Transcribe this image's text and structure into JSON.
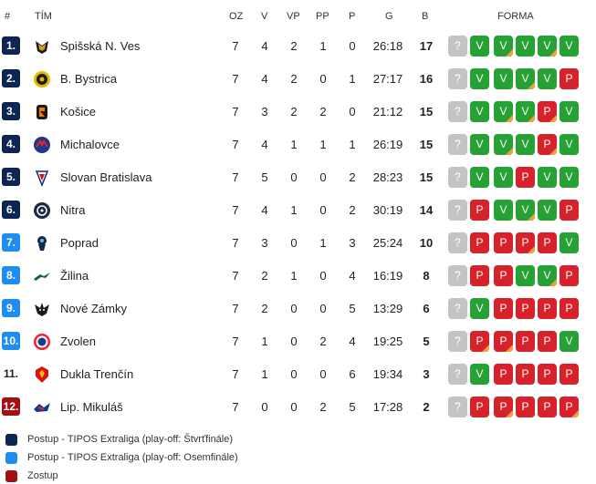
{
  "header": {
    "rank": "#",
    "team": "TÍM",
    "oz": "OZ",
    "v": "V",
    "vp": "VP",
    "pp": "PP",
    "p": "P",
    "g": "G",
    "b": "B",
    "forma": "FORMA"
  },
  "colors": {
    "qf": "#0c2553",
    "r16": "#1d8ef0",
    "rel": "#a30f12",
    "win": "#25a233",
    "loss": "#d7222b",
    "unknown": "#c4c4c4",
    "ot": "#f0a23a"
  },
  "rows": [
    {
      "rank": "1.",
      "zone": "qf",
      "team": "Spišská N. Ves",
      "logo": "spisska-logo-icon",
      "oz": "7",
      "v": "4",
      "vp": "2",
      "pp": "1",
      "p": "0",
      "g": "26:18",
      "b": "17",
      "form": [
        {
          "r": "?",
          "ot": false
        },
        {
          "r": "V",
          "ot": false
        },
        {
          "r": "V",
          "ot": true
        },
        {
          "r": "V",
          "ot": false
        },
        {
          "r": "V",
          "ot": true
        },
        {
          "r": "V",
          "ot": false
        }
      ]
    },
    {
      "rank": "2.",
      "zone": "qf",
      "team": "B. Bystrica",
      "logo": "bystrica-logo-icon",
      "oz": "7",
      "v": "4",
      "vp": "2",
      "pp": "0",
      "p": "1",
      "g": "27:17",
      "b": "16",
      "form": [
        {
          "r": "?",
          "ot": false
        },
        {
          "r": "V",
          "ot": false
        },
        {
          "r": "V",
          "ot": false
        },
        {
          "r": "V",
          "ot": true
        },
        {
          "r": "V",
          "ot": false
        },
        {
          "r": "P",
          "ot": false
        }
      ]
    },
    {
      "rank": "3.",
      "zone": "qf",
      "team": "Košice",
      "logo": "kosice-logo-icon",
      "oz": "7",
      "v": "3",
      "vp": "2",
      "pp": "2",
      "p": "0",
      "g": "21:12",
      "b": "15",
      "form": [
        {
          "r": "?",
          "ot": false
        },
        {
          "r": "V",
          "ot": false
        },
        {
          "r": "V",
          "ot": true
        },
        {
          "r": "V",
          "ot": true
        },
        {
          "r": "P",
          "ot": true
        },
        {
          "r": "V",
          "ot": false
        }
      ]
    },
    {
      "rank": "4.",
      "zone": "qf",
      "team": "Michalovce",
      "logo": "michalovce-logo-icon",
      "oz": "7",
      "v": "4",
      "vp": "1",
      "pp": "1",
      "p": "1",
      "g": "26:19",
      "b": "15",
      "form": [
        {
          "r": "?",
          "ot": false
        },
        {
          "r": "V",
          "ot": false
        },
        {
          "r": "V",
          "ot": true
        },
        {
          "r": "V",
          "ot": false
        },
        {
          "r": "P",
          "ot": true
        },
        {
          "r": "V",
          "ot": false
        }
      ]
    },
    {
      "rank": "5.",
      "zone": "qf",
      "team": "Slovan Bratislava",
      "logo": "slovan-logo-icon",
      "oz": "7",
      "v": "5",
      "vp": "0",
      "pp": "0",
      "p": "2",
      "g": "28:23",
      "b": "15",
      "form": [
        {
          "r": "?",
          "ot": false
        },
        {
          "r": "V",
          "ot": false
        },
        {
          "r": "V",
          "ot": false
        },
        {
          "r": "P",
          "ot": false
        },
        {
          "r": "V",
          "ot": false
        },
        {
          "r": "V",
          "ot": false
        }
      ]
    },
    {
      "rank": "6.",
      "zone": "qf",
      "team": "Nitra",
      "logo": "nitra-logo-icon",
      "oz": "7",
      "v": "4",
      "vp": "1",
      "pp": "0",
      "p": "2",
      "g": "30:19",
      "b": "14",
      "form": [
        {
          "r": "?",
          "ot": false
        },
        {
          "r": "P",
          "ot": false
        },
        {
          "r": "V",
          "ot": false
        },
        {
          "r": "V",
          "ot": true
        },
        {
          "r": "V",
          "ot": false
        },
        {
          "r": "P",
          "ot": false
        }
      ]
    },
    {
      "rank": "7.",
      "zone": "r16",
      "team": "Poprad",
      "logo": "poprad-logo-icon",
      "oz": "7",
      "v": "3",
      "vp": "0",
      "pp": "1",
      "p": "3",
      "g": "25:24",
      "b": "10",
      "form": [
        {
          "r": "?",
          "ot": false
        },
        {
          "r": "P",
          "ot": false
        },
        {
          "r": "P",
          "ot": false
        },
        {
          "r": "P",
          "ot": true
        },
        {
          "r": "P",
          "ot": false
        },
        {
          "r": "V",
          "ot": false
        }
      ]
    },
    {
      "rank": "8.",
      "zone": "r16",
      "team": "Žilina",
      "logo": "zilina-logo-icon",
      "oz": "7",
      "v": "2",
      "vp": "1",
      "pp": "0",
      "p": "4",
      "g": "16:19",
      "b": "8",
      "form": [
        {
          "r": "?",
          "ot": false
        },
        {
          "r": "P",
          "ot": false
        },
        {
          "r": "P",
          "ot": false
        },
        {
          "r": "V",
          "ot": false
        },
        {
          "r": "V",
          "ot": true
        },
        {
          "r": "P",
          "ot": false
        }
      ]
    },
    {
      "rank": "9.",
      "zone": "r16",
      "team": "Nové Zámky",
      "logo": "zamky-logo-icon",
      "oz": "7",
      "v": "2",
      "vp": "0",
      "pp": "0",
      "p": "5",
      "g": "13:29",
      "b": "6",
      "form": [
        {
          "r": "?",
          "ot": false
        },
        {
          "r": "V",
          "ot": false
        },
        {
          "r": "P",
          "ot": false
        },
        {
          "r": "P",
          "ot": false
        },
        {
          "r": "P",
          "ot": false
        },
        {
          "r": "P",
          "ot": false
        }
      ]
    },
    {
      "rank": "10.",
      "zone": "r16",
      "team": "Zvolen",
      "logo": "zvolen-logo-icon",
      "oz": "7",
      "v": "1",
      "vp": "0",
      "pp": "2",
      "p": "4",
      "g": "19:25",
      "b": "5",
      "form": [
        {
          "r": "?",
          "ot": false
        },
        {
          "r": "P",
          "ot": true
        },
        {
          "r": "P",
          "ot": true
        },
        {
          "r": "P",
          "ot": false
        },
        {
          "r": "P",
          "ot": false
        },
        {
          "r": "V",
          "ot": false
        }
      ]
    },
    {
      "rank": "11.",
      "zone": "none",
      "team": "Dukla Trenčín",
      "logo": "dukla-logo-icon",
      "oz": "7",
      "v": "1",
      "vp": "0",
      "pp": "0",
      "p": "6",
      "g": "19:34",
      "b": "3",
      "form": [
        {
          "r": "?",
          "ot": false
        },
        {
          "r": "V",
          "ot": false
        },
        {
          "r": "P",
          "ot": false
        },
        {
          "r": "P",
          "ot": false
        },
        {
          "r": "P",
          "ot": false
        },
        {
          "r": "P",
          "ot": false
        }
      ]
    },
    {
      "rank": "12.",
      "zone": "rel",
      "team": "Lip. Mikuláš",
      "logo": "mikulas-logo-icon",
      "oz": "7",
      "v": "0",
      "vp": "0",
      "pp": "2",
      "p": "5",
      "g": "17:28",
      "b": "2",
      "form": [
        {
          "r": "?",
          "ot": false
        },
        {
          "r": "P",
          "ot": false
        },
        {
          "r": "P",
          "ot": true
        },
        {
          "r": "P",
          "ot": false
        },
        {
          "r": "P",
          "ot": false
        },
        {
          "r": "P",
          "ot": true
        }
      ]
    }
  ],
  "legend": [
    {
      "zone": "qf",
      "label": "Postup - TIPOS Extraliga (play-off: Štvrťfinále)"
    },
    {
      "zone": "r16",
      "label": "Postup - TIPOS Extraliga (play-off: Osemfinále)"
    },
    {
      "zone": "rel",
      "label": "Zostup"
    }
  ]
}
